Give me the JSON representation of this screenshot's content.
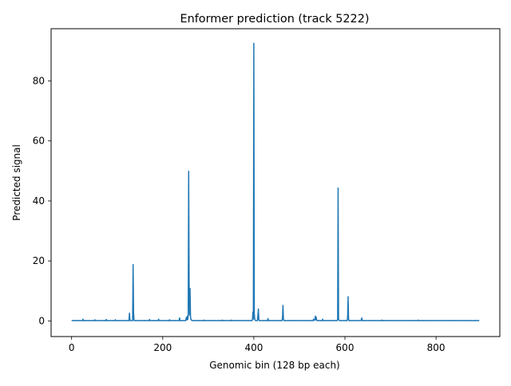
{
  "chart_data": {
    "type": "line",
    "title": "Enformer prediction (track 5222)",
    "xlabel": "Genomic bin (128 bp each)",
    "ylabel": "Predicted signal",
    "xlim": [
      -45,
      940
    ],
    "ylim": [
      -5.2,
      97.4
    ],
    "xticks": [
      0,
      200,
      400,
      600,
      800
    ],
    "yticks": [
      0,
      20,
      40,
      60,
      80
    ],
    "grid": false,
    "legend": "none",
    "line_color": "#1f77b4",
    "baseline": 0.1,
    "x_end": 895,
    "series": [
      {
        "x": [
          0,
          24,
          25,
          26,
          50,
          51,
          52,
          75,
          76,
          77,
          95,
          96,
          97,
          126,
          127,
          128,
          129,
          130,
          134,
          135,
          136,
          137,
          138,
          139,
          170,
          171,
          172,
          190,
          191,
          192,
          214,
          215,
          216,
          236,
          237,
          238,
          250,
          251,
          252,
          253,
          254,
          255,
          256,
          257,
          258,
          259,
          260,
          261,
          262,
          263,
          264,
          265,
          290,
          291,
          292,
          330,
          331,
          332,
          350,
          351,
          352,
          396,
          397,
          398,
          399,
          400,
          401,
          402,
          403,
          408,
          409,
          410,
          411,
          412,
          430,
          431,
          432,
          462,
          463,
          464,
          465,
          466,
          530,
          531,
          532,
          534,
          535,
          536,
          537,
          538,
          550,
          551,
          552,
          583,
          584,
          585,
          586,
          587,
          588,
          605,
          606,
          607,
          608,
          609,
          635,
          636,
          637,
          638,
          680,
          681,
          682,
          760,
          761,
          762,
          895
        ],
        "y": [
          0.1,
          0.1,
          0.6,
          0.1,
          0.1,
          0.4,
          0.1,
          0.1,
          0.5,
          0.1,
          0.1,
          0.4,
          0.1,
          0.1,
          2.6,
          0.3,
          0.1,
          0.1,
          0.1,
          18.8,
          3.0,
          0.2,
          0.1,
          0.1,
          0.1,
          0.5,
          0.1,
          0.1,
          0.6,
          0.1,
          0.1,
          0.4,
          0.1,
          0.1,
          1.0,
          0.1,
          0.1,
          0.6,
          1.2,
          0.3,
          1.6,
          0.5,
          1.8,
          49.9,
          12.0,
          2.0,
          10.8,
          1.5,
          0.5,
          0.3,
          0.2,
          0.1,
          0.1,
          0.3,
          0.1,
          0.1,
          0.3,
          0.1,
          0.1,
          0.3,
          0.1,
          0.1,
          0.4,
          3.0,
          0.6,
          92.5,
          2.4,
          0.6,
          0.2,
          0.1,
          2.0,
          4.0,
          0.4,
          0.1,
          0.1,
          0.8,
          0.1,
          0.1,
          1.2,
          5.2,
          0.6,
          0.1,
          0.1,
          0.6,
          0.2,
          0.3,
          1.6,
          0.4,
          1.2,
          0.2,
          0.1,
          0.6,
          0.1,
          0.1,
          0.6,
          44.3,
          0.8,
          0.2,
          0.1,
          0.1,
          1.5,
          8.1,
          0.6,
          0.1,
          0.1,
          0.4,
          1.0,
          0.1,
          0.1,
          0.3,
          0.1,
          0.1,
          0.3,
          0.1,
          0.1
        ]
      }
    ]
  }
}
